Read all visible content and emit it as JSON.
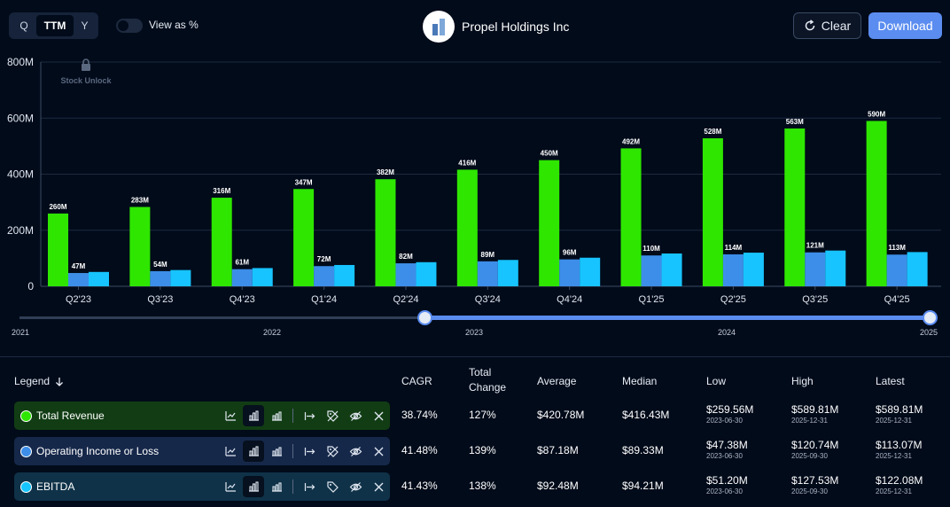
{
  "toolbar": {
    "periods": [
      "Q",
      "TTM",
      "Y"
    ],
    "active_period": "TTM",
    "view_as_percent_label": "View as %",
    "company_name": "Propel Holdings Inc",
    "clear_label": "Clear",
    "download_label": "Download"
  },
  "watermark": "Stock Unlock",
  "chart_data": {
    "type": "bar",
    "ylim": [
      0,
      800
    ],
    "yticks": [
      0,
      200,
      400,
      600,
      800
    ],
    "ytick_labels": [
      "0",
      "200M",
      "400M",
      "600M",
      "800M"
    ],
    "categories": [
      "Q2'23",
      "Q3'23",
      "Q4'23",
      "Q1'24",
      "Q2'24",
      "Q3'24",
      "Q4'24",
      "Q1'25",
      "Q2'25",
      "Q3'25",
      "Q4'25"
    ],
    "series": [
      {
        "name": "Total Revenue",
        "color": "#2ee600",
        "values": [
          259.56,
          283,
          316,
          347,
          382,
          416,
          450,
          492,
          528,
          563,
          589.81
        ],
        "labels": [
          "260M",
          "283M",
          "316M",
          "347M",
          "382M",
          "416M",
          "450M",
          "492M",
          "528M",
          "563M",
          "590M"
        ]
      },
      {
        "name": "Operating Income or Loss",
        "color": "#3d8ee8",
        "values": [
          47.38,
          54,
          61,
          72,
          82,
          89,
          96,
          110,
          114,
          121,
          113.07
        ],
        "labels": [
          "47M",
          "54M",
          "61M",
          "72M",
          "82M",
          "89M",
          "96M",
          "110M",
          "114M",
          "121M",
          "113M"
        ]
      },
      {
        "name": "EBITDA",
        "color": "#17c4ff",
        "values": [
          51.2,
          58,
          65,
          76,
          86,
          94,
          102,
          117,
          120,
          127.53,
          122.08
        ],
        "labels": []
      }
    ]
  },
  "timeline": {
    "years": [
      "2021",
      "2022",
      "2023",
      "2024",
      "2025"
    ]
  },
  "legend": {
    "title": "Legend",
    "columns": {
      "cagr": "CAGR",
      "total_change_1": "Total",
      "total_change_2": "Change",
      "average": "Average",
      "median": "Median",
      "low": "Low",
      "high": "High",
      "latest": "Latest"
    },
    "rows": [
      {
        "name": "Total Revenue",
        "color": "#2ee600",
        "bg": "#123d14",
        "cagr": "38.74%",
        "total_change": "127%",
        "average": "$420.78M",
        "median": "$416.43M",
        "low": "$259.56M",
        "low_date": "2023-06-30",
        "high": "$589.81M",
        "high_date": "2025-12-31",
        "latest": "$589.81M",
        "latest_date": "2025-12-31"
      },
      {
        "name": "Operating Income or Loss",
        "color": "#3d8ee8",
        "bg": "#16284a",
        "cagr": "41.48%",
        "total_change": "139%",
        "average": "$87.18M",
        "median": "$89.33M",
        "low": "$47.38M",
        "low_date": "2023-06-30",
        "high": "$120.74M",
        "high_date": "2025-09-30",
        "latest": "$113.07M",
        "latest_date": "2025-12-31"
      },
      {
        "name": "EBITDA",
        "color": "#17c4ff",
        "bg": "#0f3248",
        "cagr": "41.43%",
        "total_change": "138%",
        "average": "$92.48M",
        "median": "$94.21M",
        "low": "$51.20M",
        "low_date": "2023-06-30",
        "high": "$127.53M",
        "high_date": "2025-09-30",
        "latest": "$122.08M",
        "latest_date": "2025-12-31"
      }
    ]
  }
}
